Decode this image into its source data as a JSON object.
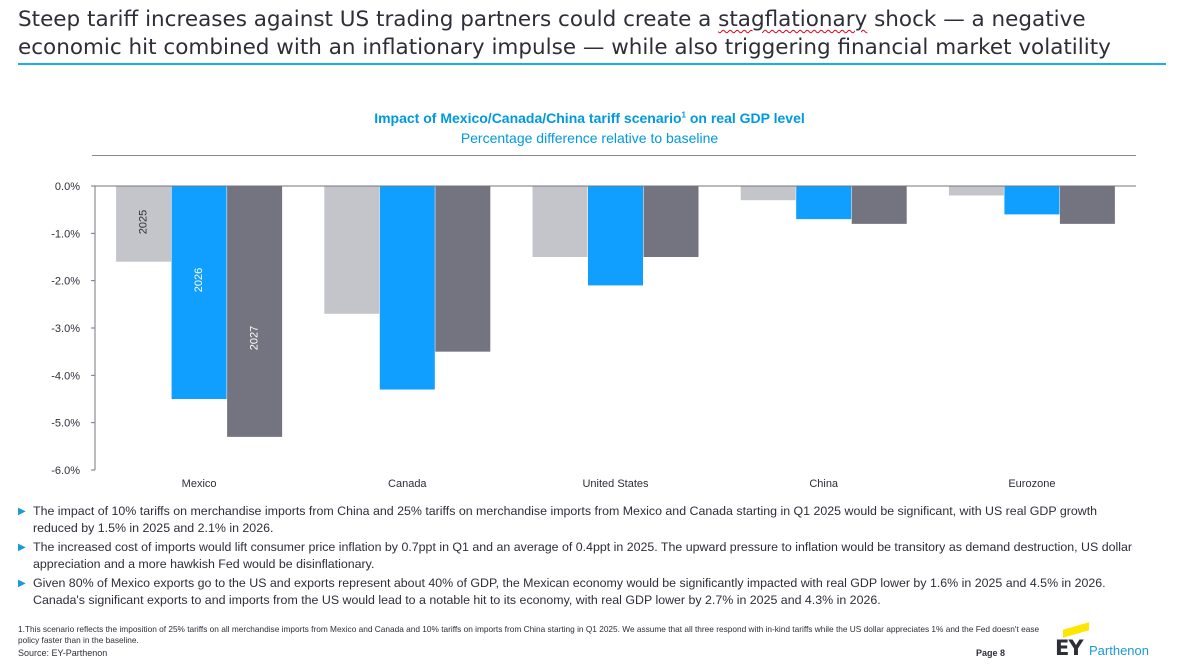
{
  "headline": {
    "part1": "Steep tariff increases against US trading partners could create a ",
    "highlight": "stagflationary",
    "part2": " shock — a negative economic hit combined with an inflationary impulse — while also triggering financial market volatility"
  },
  "chart_title": "Impact of Mexico/Canada/China tariff scenario",
  "chart_title_sup": "1",
  "chart_title_suffix": " on real GDP level",
  "chart_subtitle": "Percentage difference relative to baseline",
  "colors": {
    "accent": "#1eaaf1",
    "s2025": "#c4c5cb",
    "s2026": "#109fff",
    "s2027": "#747480"
  },
  "chart_data": {
    "type": "bar",
    "categories": [
      "Mexico",
      "Canada",
      "United States",
      "China",
      "Eurozone"
    ],
    "series": [
      {
        "name": "2025",
        "values": [
          -1.6,
          -2.7,
          -1.5,
          -0.3,
          -0.2
        ]
      },
      {
        "name": "2026",
        "values": [
          -4.5,
          -4.3,
          -2.1,
          -0.7,
          -0.6
        ]
      },
      {
        "name": "2027",
        "values": [
          -5.3,
          -3.5,
          -1.5,
          -0.8,
          -0.8
        ]
      }
    ],
    "yticks": [
      "0.0%",
      "-1.0%",
      "-2.0%",
      "-3.0%",
      "-4.0%",
      "-5.0%",
      "-6.0%"
    ],
    "ylim": [
      -6,
      0
    ],
    "grid": false,
    "legend": "labels inside Mexico bars"
  },
  "bullets": [
    "The impact of 10% tariffs on merchandise imports from China and 25% tariffs on merchandise imports from Mexico and Canada starting in Q1 2025 would be significant, with US real GDP growth reduced by 1.5% in 2025 and 2.1% in 2026.",
    "The increased cost of imports would lift consumer price inflation by 0.7ppt in Q1 and an average of 0.4ppt in 2025. The upward pressure to inflation would be transitory as demand destruction, US dollar appreciation and a more hawkish Fed would be disinflationary.",
    "Given 80% of Mexico exports go to the US and exports represent about 40% of GDP, the Mexican economy would be significantly impacted with real GDP lower by 1.6% in 2025 and 4.5% in 2026. Canada's significant exports to and imports from the US would lead to a notable hit to its economy, with real GDP lower by 2.7% in 2025 and 4.3% in 2026."
  ],
  "footnote": "1.This scenario reflects the imposition of 25% tariffs on all merchandise imports from Mexico and Canada and 10% tariffs on imports from China starting in Q1 2025. We assume that all three respond with in-kind tariffs while the US dollar appreciates 1% and the Fed doesn't ease policy faster than in the baseline.",
  "source": "Source: EY-Parthenon",
  "page": "Page 8",
  "logo": {
    "ey": "EY",
    "name": "Parthenon"
  }
}
